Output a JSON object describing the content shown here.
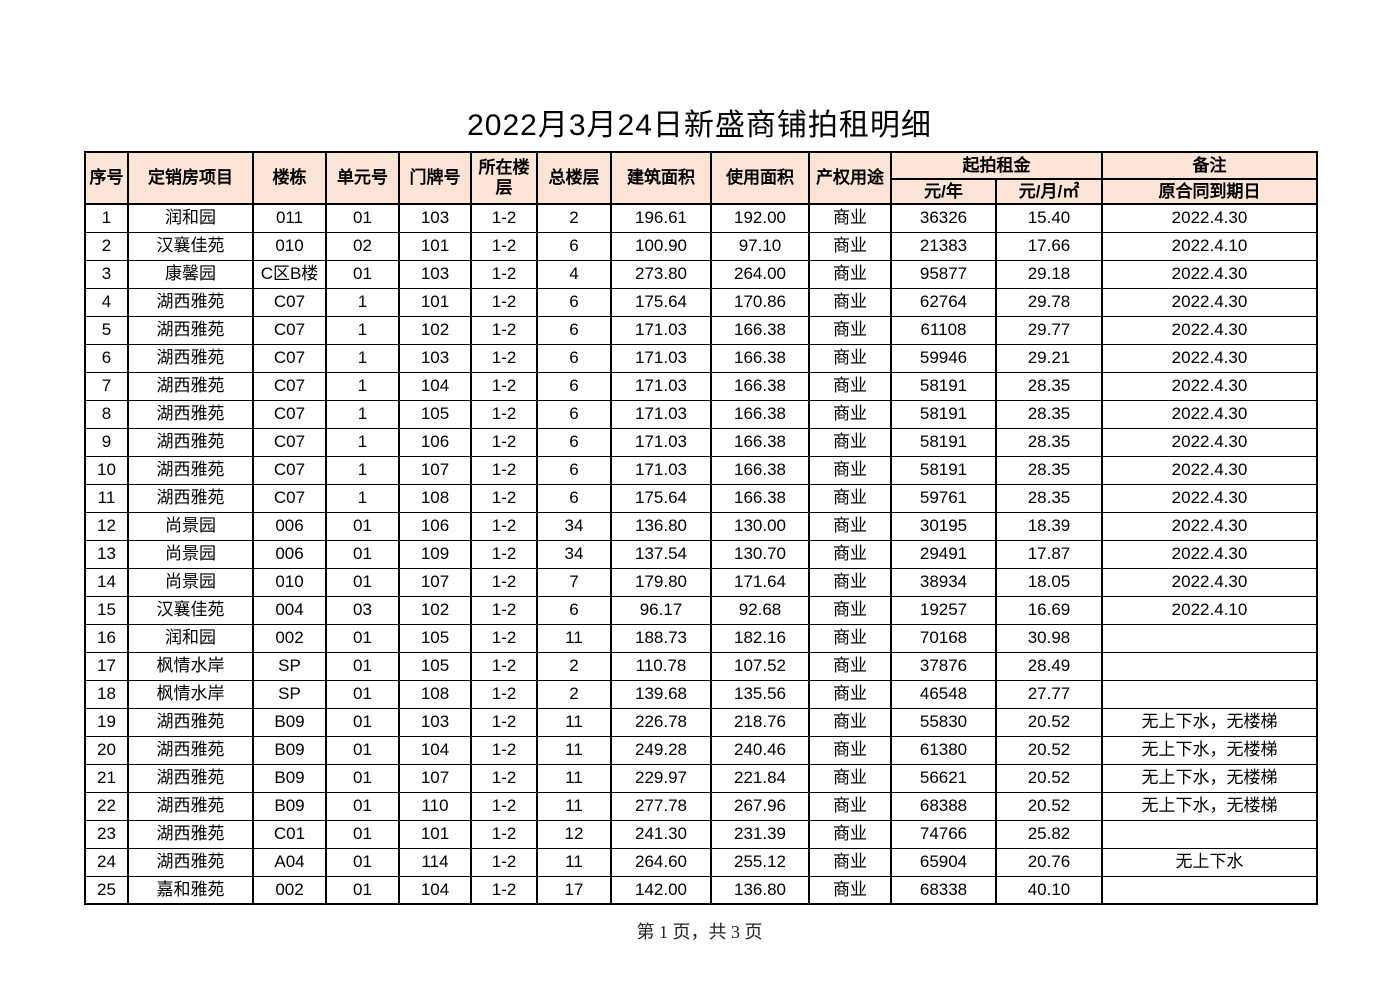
{
  "page": {
    "title": "2022月3月24日新盛商铺拍租明细",
    "footer": "第 1 页，共 3 页"
  },
  "colors": {
    "header_bg": "#fce4d6",
    "border": "#000000",
    "page_bg": "#ffffff"
  },
  "table": {
    "headers": {
      "index": "序号",
      "project": "定销房项目",
      "building": "楼栋",
      "unit_no": "单元号",
      "door_no": "门牌号",
      "floor": "所在楼层",
      "total_floors": "总楼层",
      "build_area": "建筑面积",
      "use_area": "使用面积",
      "property_usage": "产权用途",
      "rent_group": "起拍租金",
      "rent_per_year": "元/年",
      "rent_per_month_sqm": "元/月/㎡",
      "remark_group": "备注",
      "remark_sub": "原合同到期日"
    },
    "rows": [
      [
        "1",
        "润和园",
        "011",
        "01",
        "103",
        "1-2",
        "2",
        "196.61",
        "192.00",
        "商业",
        "36326",
        "15.40",
        "2022.4.30"
      ],
      [
        "2",
        "汉襄佳苑",
        "010",
        "02",
        "101",
        "1-2",
        "6",
        "100.90",
        "97.10",
        "商业",
        "21383",
        "17.66",
        "2022.4.10"
      ],
      [
        "3",
        "康馨园",
        "C区B楼",
        "01",
        "103",
        "1-2",
        "4",
        "273.80",
        "264.00",
        "商业",
        "95877",
        "29.18",
        "2022.4.30"
      ],
      [
        "4",
        "湖西雅苑",
        "C07",
        "1",
        "101",
        "1-2",
        "6",
        "175.64",
        "170.86",
        "商业",
        "62764",
        "29.78",
        "2022.4.30"
      ],
      [
        "5",
        "湖西雅苑",
        "C07",
        "1",
        "102",
        "1-2",
        "6",
        "171.03",
        "166.38",
        "商业",
        "61108",
        "29.77",
        "2022.4.30"
      ],
      [
        "6",
        "湖西雅苑",
        "C07",
        "1",
        "103",
        "1-2",
        "6",
        "171.03",
        "166.38",
        "商业",
        "59946",
        "29.21",
        "2022.4.30"
      ],
      [
        "7",
        "湖西雅苑",
        "C07",
        "1",
        "104",
        "1-2",
        "6",
        "171.03",
        "166.38",
        "商业",
        "58191",
        "28.35",
        "2022.4.30"
      ],
      [
        "8",
        "湖西雅苑",
        "C07",
        "1",
        "105",
        "1-2",
        "6",
        "171.03",
        "166.38",
        "商业",
        "58191",
        "28.35",
        "2022.4.30"
      ],
      [
        "9",
        "湖西雅苑",
        "C07",
        "1",
        "106",
        "1-2",
        "6",
        "171.03",
        "166.38",
        "商业",
        "58191",
        "28.35",
        "2022.4.30"
      ],
      [
        "10",
        "湖西雅苑",
        "C07",
        "1",
        "107",
        "1-2",
        "6",
        "171.03",
        "166.38",
        "商业",
        "58191",
        "28.35",
        "2022.4.30"
      ],
      [
        "11",
        "湖西雅苑",
        "C07",
        "1",
        "108",
        "1-2",
        "6",
        "175.64",
        "166.38",
        "商业",
        "59761",
        "28.35",
        "2022.4.30"
      ],
      [
        "12",
        "尚景园",
        "006",
        "01",
        "106",
        "1-2",
        "34",
        "136.80",
        "130.00",
        "商业",
        "30195",
        "18.39",
        "2022.4.30"
      ],
      [
        "13",
        "尚景园",
        "006",
        "01",
        "109",
        "1-2",
        "34",
        "137.54",
        "130.70",
        "商业",
        "29491",
        "17.87",
        "2022.4.30"
      ],
      [
        "14",
        "尚景园",
        "010",
        "01",
        "107",
        "1-2",
        "7",
        "179.80",
        "171.64",
        "商业",
        "38934",
        "18.05",
        "2022.4.30"
      ],
      [
        "15",
        "汉襄佳苑",
        "004",
        "03",
        "102",
        "1-2",
        "6",
        "96.17",
        "92.68",
        "商业",
        "19257",
        "16.69",
        "2022.4.10"
      ],
      [
        "16",
        "润和园",
        "002",
        "01",
        "105",
        "1-2",
        "11",
        "188.73",
        "182.16",
        "商业",
        "70168",
        "30.98",
        ""
      ],
      [
        "17",
        "枫情水岸",
        "SP",
        "01",
        "105",
        "1-2",
        "2",
        "110.78",
        "107.52",
        "商业",
        "37876",
        "28.49",
        ""
      ],
      [
        "18",
        "枫情水岸",
        "SP",
        "01",
        "108",
        "1-2",
        "2",
        "139.68",
        "135.56",
        "商业",
        "46548",
        "27.77",
        ""
      ],
      [
        "19",
        "湖西雅苑",
        "B09",
        "01",
        "103",
        "1-2",
        "11",
        "226.78",
        "218.76",
        "商业",
        "55830",
        "20.52",
        "无上下水，无楼梯"
      ],
      [
        "20",
        "湖西雅苑",
        "B09",
        "01",
        "104",
        "1-2",
        "11",
        "249.28",
        "240.46",
        "商业",
        "61380",
        "20.52",
        "无上下水，无楼梯"
      ],
      [
        "21",
        "湖西雅苑",
        "B09",
        "01",
        "107",
        "1-2",
        "11",
        "229.97",
        "221.84",
        "商业",
        "56621",
        "20.52",
        "无上下水，无楼梯"
      ],
      [
        "22",
        "湖西雅苑",
        "B09",
        "01",
        "110",
        "1-2",
        "11",
        "277.78",
        "267.96",
        "商业",
        "68388",
        "20.52",
        "无上下水，无楼梯"
      ],
      [
        "23",
        "湖西雅苑",
        "C01",
        "01",
        "101",
        "1-2",
        "12",
        "241.30",
        "231.39",
        "商业",
        "74766",
        "25.82",
        ""
      ],
      [
        "24",
        "湖西雅苑",
        "A04",
        "01",
        "114",
        "1-2",
        "11",
        "264.60",
        "255.12",
        "商业",
        "65904",
        "20.76",
        "无上下水"
      ],
      [
        "25",
        "嘉和雅苑",
        "002",
        "01",
        "104",
        "1-2",
        "17",
        "142.00",
        "136.80",
        "商业",
        "68338",
        "40.10",
        ""
      ]
    ]
  }
}
